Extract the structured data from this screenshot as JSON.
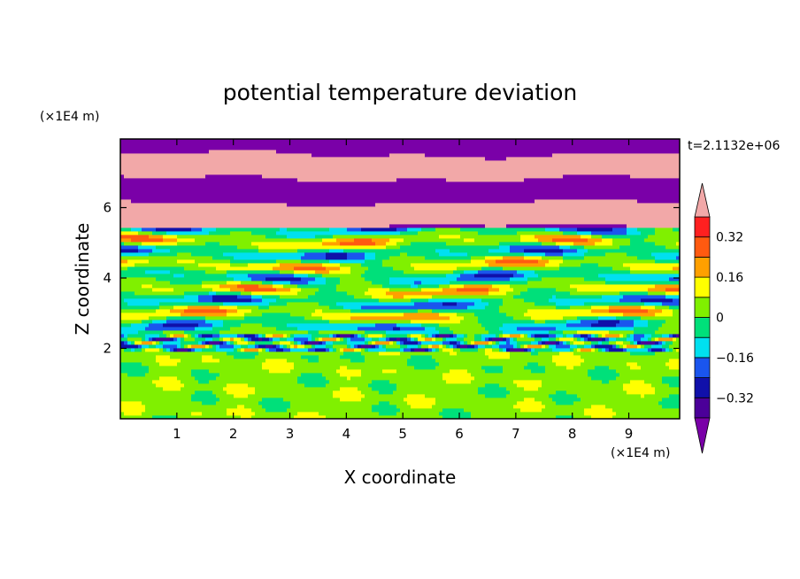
{
  "chart_data": {
    "type": "heatmap",
    "title": "potential temperature deviation",
    "xlabel": "X coordinate",
    "ylabel": "Z coordinate",
    "x_unit": "(×1E4 m)",
    "y_unit": "(×1E4 m)",
    "time_label": "t=2.1132e+06",
    "xlim": [
      0,
      9.9
    ],
    "ylim": [
      0,
      7.95
    ],
    "x_ticks": [
      "1",
      "2",
      "3",
      "4",
      "5",
      "6",
      "7",
      "8",
      "9"
    ],
    "y_ticks": [
      "2",
      "4",
      "6"
    ],
    "x_tick_values": [
      1,
      2,
      3,
      4,
      5,
      6,
      7,
      8,
      9
    ],
    "y_tick_values": [
      2,
      4,
      6
    ],
    "colorbar": {
      "levels": [
        -0.48,
        -0.4,
        -0.32,
        -0.24,
        -0.16,
        -0.08,
        0,
        0.08,
        0.16,
        0.24,
        0.32,
        0.4
      ],
      "colors": [
        "#7a00a8",
        "#4b0099",
        "#1010aa",
        "#1a55ee",
        "#00e0f0",
        "#00e07a",
        "#80f000",
        "#ffff00",
        "#ffa000",
        "#ff5a10",
        "#ff2020",
        "#f2a8a8"
      ],
      "tick_labels": [
        "0.32",
        "0.16",
        "0",
        "−0.16",
        "−0.32"
      ],
      "tick_values": [
        0.32,
        0.16,
        0,
        -0.16,
        -0.32
      ],
      "extend": "both"
    },
    "layers": [
      {
        "zmin": 0.0,
        "zmax": 1.95,
        "dominant_value": 0.0,
        "description_value_range": [
          -0.08,
          0.08
        ]
      },
      {
        "zmin": 1.95,
        "zmax": 2.4,
        "dominant_value": -0.08,
        "value_range": [
          -0.48,
          0.4
        ]
      },
      {
        "zmin": 2.4,
        "zmax": 4.0,
        "dominant_value": -0.04,
        "value_range": [
          -0.16,
          0.24
        ]
      },
      {
        "zmin": 4.0,
        "zmax": 5.4,
        "dominant_value": 0.0,
        "value_range": [
          -0.32,
          0.4
        ]
      },
      {
        "zmin": 5.4,
        "zmax": 7.95,
        "dominant_value": 0.44,
        "value_range": [
          -0.48,
          0.48
        ]
      }
    ]
  }
}
